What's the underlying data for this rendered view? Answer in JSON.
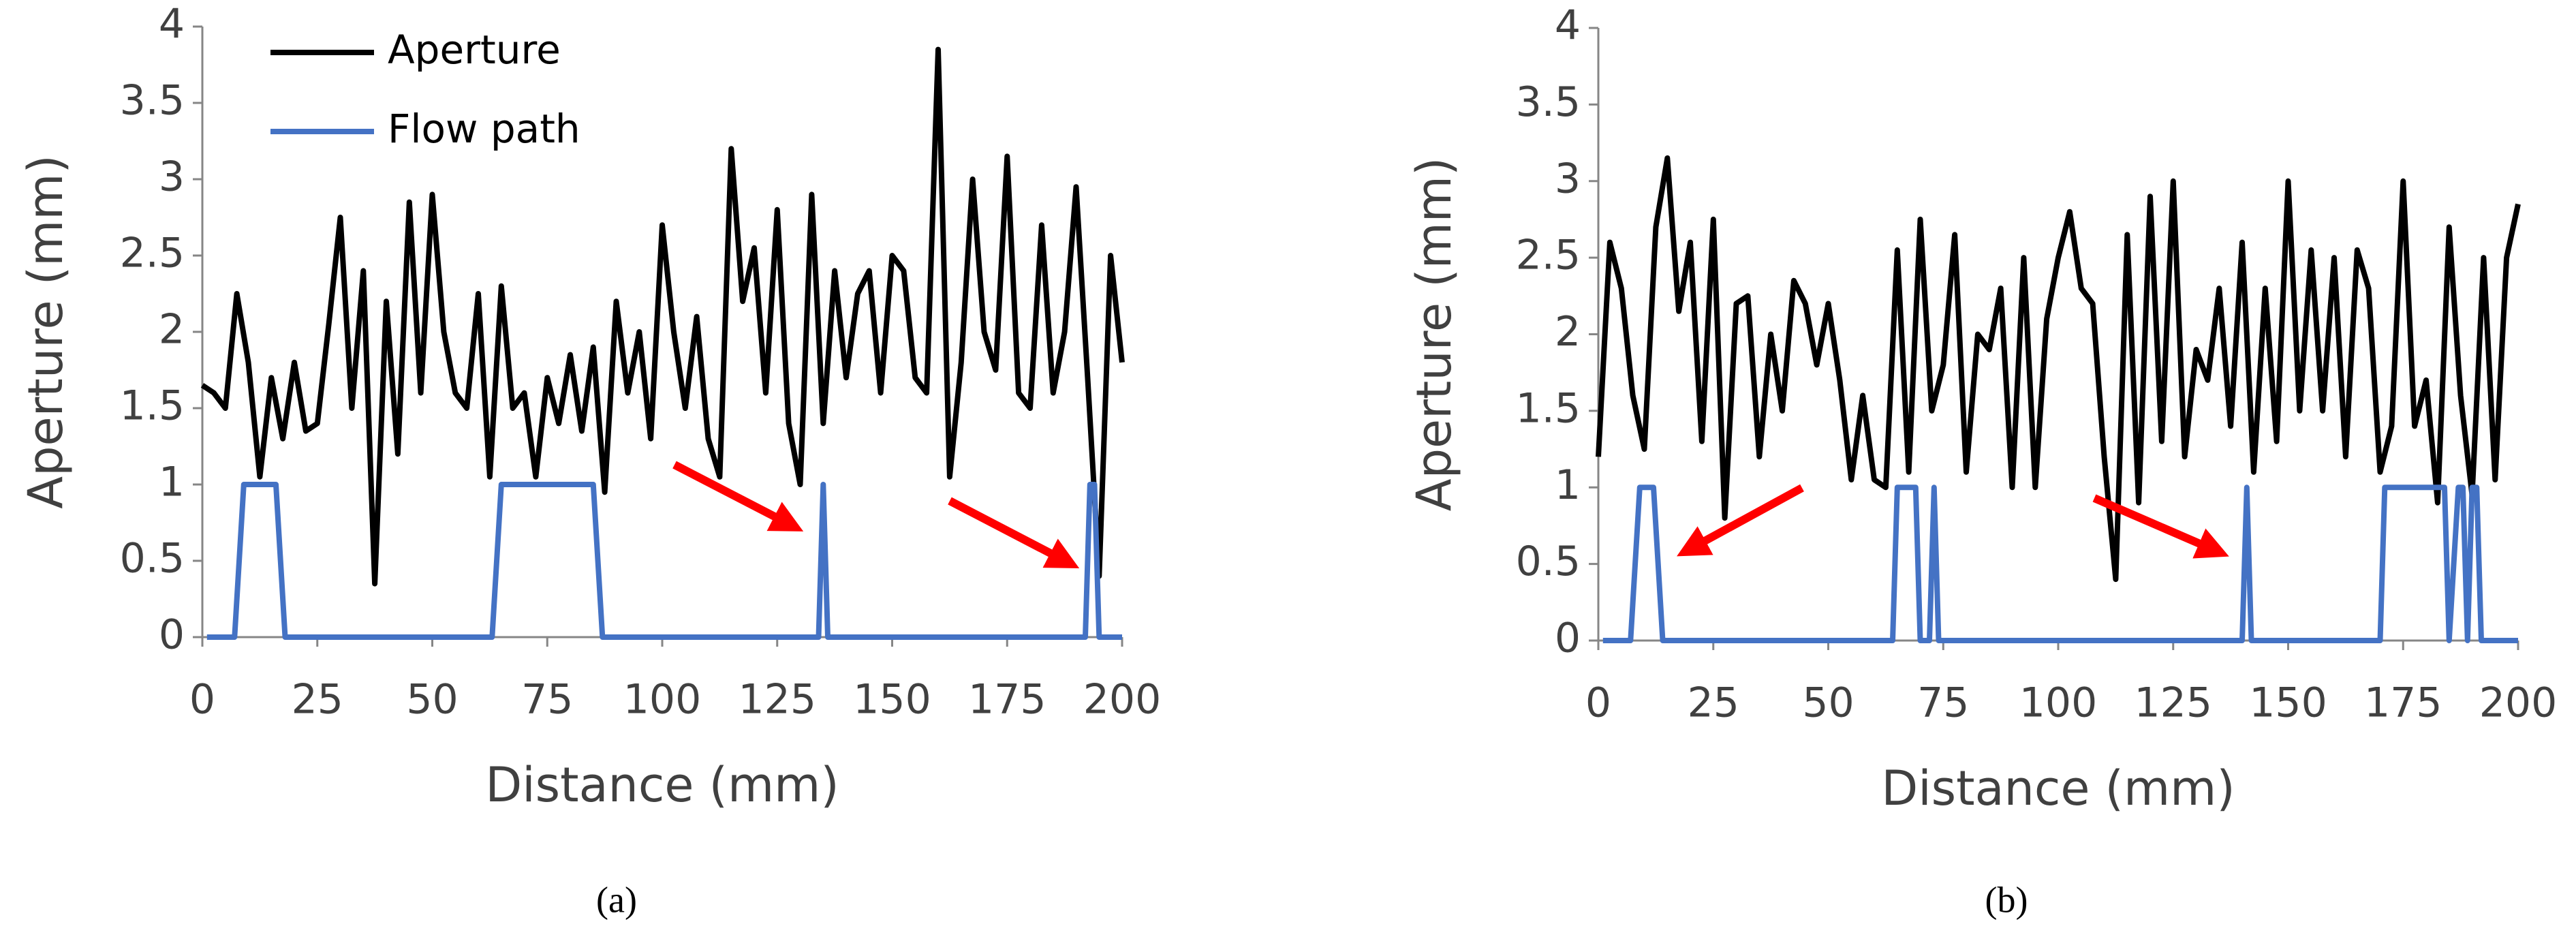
{
  "chart_data": [
    {
      "type": "line",
      "caption": "(a)",
      "x_label": "Distance (mm)",
      "y_label": "Aperture (mm)",
      "xlim": [
        0,
        200
      ],
      "ylim": [
        0,
        4
      ],
      "xticks": [
        0,
        25,
        50,
        75,
        100,
        125,
        150,
        175,
        200
      ],
      "yticks": [
        0,
        0.5,
        1,
        1.5,
        2,
        2.5,
        3,
        3.5,
        4
      ],
      "legend": "top-left",
      "x": [
        0,
        2.5,
        5,
        7.5,
        10,
        12.5,
        15,
        17.5,
        20,
        22.5,
        25,
        27.5,
        30,
        32.5,
        35,
        37.5,
        40,
        42.5,
        45,
        47.5,
        50,
        52.5,
        55,
        57.5,
        60,
        62.5,
        65,
        67.5,
        70,
        72.5,
        75,
        77.5,
        80,
        82.5,
        85,
        87.5,
        90,
        92.5,
        95,
        97.5,
        100,
        102.5,
        105,
        107.5,
        110,
        112.5,
        115,
        117.5,
        120,
        122.5,
        125,
        127.5,
        130,
        132.5,
        135,
        137.5,
        140,
        142.5,
        145,
        147.5,
        150,
        152.5,
        155,
        157.5,
        160,
        162.5,
        165,
        167.5,
        170,
        172.5,
        175,
        177.5,
        180,
        182.5,
        185,
        187.5,
        190,
        192.5,
        195,
        197.5,
        200
      ],
      "series": [
        {
          "name": "Aperture",
          "color": "#000000",
          "values": [
            1.65,
            1.6,
            1.5,
            2.25,
            1.8,
            1.05,
            1.7,
            1.3,
            1.8,
            1.35,
            1.4,
            2.05,
            2.75,
            1.5,
            2.4,
            0.35,
            2.2,
            1.2,
            2.85,
            1.6,
            2.9,
            2.0,
            1.6,
            1.5,
            2.25,
            1.05,
            2.3,
            1.5,
            1.6,
            1.05,
            1.7,
            1.4,
            1.85,
            1.35,
            1.9,
            0.95,
            2.2,
            1.6,
            2.0,
            1.3,
            2.7,
            2.0,
            1.5,
            2.1,
            1.3,
            1.05,
            3.2,
            2.2,
            2.55,
            1.6,
            2.8,
            1.4,
            1.0,
            2.9,
            1.4,
            2.4,
            1.7,
            2.25,
            2.4,
            1.6,
            2.5,
            2.4,
            1.7,
            1.6,
            3.85,
            1.05,
            1.8,
            3.0,
            2.0,
            1.75,
            3.15,
            1.6,
            1.5,
            2.7,
            1.6,
            2.0,
            2.95,
            1.7,
            0.4,
            2.5,
            1.8
          ]
        },
        {
          "name": "Flow path",
          "color": "#4472c4",
          "x": [
            1,
            7,
            9,
            16,
            18,
            63,
            65,
            85,
            87,
            134,
            135,
            136,
            192,
            193,
            194,
            195,
            200
          ],
          "values": [
            0,
            0,
            1,
            1,
            0,
            0,
            1,
            1,
            0,
            0,
            1,
            0,
            0,
            1,
            1,
            0,
            0
          ]
        }
      ]
    },
    {
      "type": "line",
      "caption": "(b)",
      "x_label": "Distance (mm)",
      "y_label": "Aperture (mm)",
      "xlim": [
        0,
        200
      ],
      "ylim": [
        0,
        4
      ],
      "xticks": [
        0,
        25,
        50,
        75,
        100,
        125,
        150,
        175,
        200
      ],
      "yticks": [
        0,
        0.5,
        1,
        1.5,
        2,
        2.5,
        3,
        3.5,
        4
      ],
      "x": [
        0,
        2.5,
        5,
        7.5,
        10,
        12.5,
        15,
        17.5,
        20,
        22.5,
        25,
        27.5,
        30,
        32.5,
        35,
        37.5,
        40,
        42.5,
        45,
        47.5,
        50,
        52.5,
        55,
        57.5,
        60,
        62.5,
        65,
        67.5,
        70,
        72.5,
        75,
        77.5,
        80,
        82.5,
        85,
        87.5,
        90,
        92.5,
        95,
        97.5,
        100,
        102.5,
        105,
        107.5,
        110,
        112.5,
        115,
        117.5,
        120,
        122.5,
        125,
        127.5,
        130,
        132.5,
        135,
        137.5,
        140,
        142.5,
        145,
        147.5,
        150,
        152.5,
        155,
        157.5,
        160,
        162.5,
        165,
        167.5,
        170,
        172.5,
        175,
        177.5,
        180,
        182.5,
        185,
        187.5,
        190,
        192.5,
        195,
        197.5,
        200
      ],
      "series": [
        {
          "name": "Aperture",
          "color": "#000000",
          "values": [
            1.2,
            2.6,
            2.3,
            1.6,
            1.25,
            2.7,
            3.15,
            2.15,
            2.6,
            1.3,
            2.75,
            0.8,
            2.2,
            2.25,
            1.2,
            2.0,
            1.5,
            2.35,
            2.2,
            1.8,
            2.2,
            1.7,
            1.05,
            1.6,
            1.05,
            1.0,
            2.55,
            1.1,
            2.75,
            1.5,
            1.8,
            2.65,
            1.1,
            2.0,
            1.9,
            2.3,
            1.0,
            2.5,
            1.0,
            2.1,
            2.5,
            2.8,
            2.3,
            2.2,
            1.2,
            0.4,
            2.65,
            0.9,
            2.9,
            1.3,
            3.0,
            1.2,
            1.9,
            1.7,
            2.3,
            1.4,
            2.6,
            1.1,
            2.3,
            1.3,
            3.0,
            1.5,
            2.55,
            1.5,
            2.5,
            1.2,
            2.55,
            2.3,
            1.1,
            1.4,
            3.0,
            1.4,
            1.7,
            0.9,
            2.7,
            1.6,
            0.95,
            2.5,
            1.05,
            2.5,
            2.85
          ]
        },
        {
          "name": "Flow path",
          "color": "#4472c4",
          "x": [
            1,
            7,
            9,
            12,
            14,
            64,
            65,
            69,
            70,
            72,
            73,
            74,
            140,
            141,
            142,
            170,
            171,
            184,
            185,
            187,
            188,
            189,
            190,
            191,
            192,
            200
          ],
          "values": [
            0,
            0,
            1,
            1,
            0,
            0,
            1,
            1,
            0,
            0,
            1,
            0,
            0,
            1,
            0,
            0,
            1,
            1,
            0,
            1,
            1,
            0,
            1,
            1,
            0,
            0
          ]
        }
      ]
    }
  ]
}
